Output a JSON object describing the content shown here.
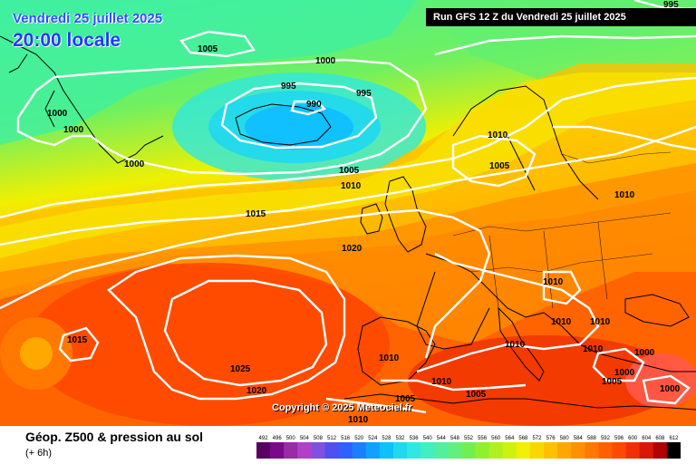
{
  "header": {
    "date": "Vendredi 25 juillet 2025",
    "time": "20:00 locale",
    "run": "Run GFS 12 Z du Vendredi 25 juillet 2025"
  },
  "footer": {
    "title": "Géop. Z500 & pression au sol",
    "subtitle": "(+ 6h)",
    "copyright": "Copyright © 2025 Meteociel.fr"
  },
  "legend": {
    "values": [
      492,
      496,
      500,
      504,
      508,
      512,
      516,
      520,
      524,
      528,
      532,
      536,
      540,
      544,
      548,
      552,
      556,
      560,
      564,
      568,
      572,
      576,
      580,
      584,
      588,
      592,
      596,
      600,
      604,
      608,
      612
    ],
    "colors": [
      "#5a0060",
      "#7a0a8a",
      "#9a2aa8",
      "#b040c8",
      "#8050e0",
      "#5050f0",
      "#3060ff",
      "#1a80ff",
      "#10a0ff",
      "#10c0ff",
      "#20d8f0",
      "#30e8e0",
      "#40f0c0",
      "#50f0a0",
      "#60f080",
      "#70f050",
      "#90f030",
      "#b0f020",
      "#d0f010",
      "#f0f000",
      "#f8d800",
      "#ffc000",
      "#ffa800",
      "#ff9000",
      "#ff7800",
      "#ff6000",
      "#ff4800",
      "#f03000",
      "#d81800",
      "#b00000",
      "#000000"
    ]
  },
  "isobars": {
    "labels": [
      "995",
      "1005",
      "1000",
      "995",
      "990",
      "995",
      "1000",
      "1000",
      "1000",
      "1005",
      "1010",
      "1015",
      "1020",
      "1010",
      "1005",
      "1010",
      "1015",
      "1025",
      "1020",
      "1010",
      "1010",
      "1010",
      "1010",
      "1010",
      "1010",
      "1005",
      "1005",
      "1010",
      "1000",
      "1005",
      "1000",
      "1010",
      "1000"
    ]
  },
  "map_regions": [
    "greenland",
    "iceland",
    "europe",
    "africa"
  ]
}
